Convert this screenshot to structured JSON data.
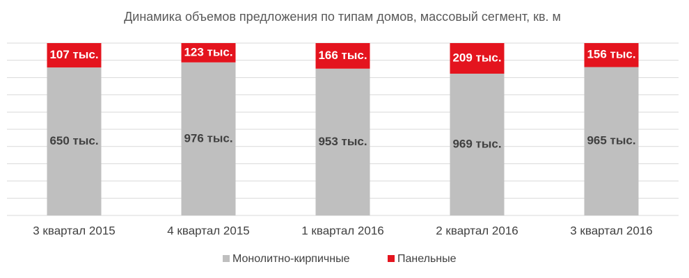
{
  "chart_data": {
    "type": "bar",
    "stacked": "percent",
    "title": "Динамика объемов предложения по типам домов, массовый сегмент, кв. м",
    "categories": [
      "3 квартал 2015",
      "4 квартал 2015",
      "1 квартал 2016",
      "2 квартал 2016",
      "3 квартал 2016"
    ],
    "series": [
      {
        "name": "Монолитно-кирпичные",
        "color": "#bfbfbf",
        "label_color": "#404040",
        "values": [
          650,
          976,
          953,
          969,
          965
        ],
        "value_labels": [
          "650 тыс.",
          "976 тыс.",
          "953 тыс.",
          "969 тыс.",
          "965 тыс."
        ]
      },
      {
        "name": "Панельные",
        "color": "#e4141e",
        "label_color": "#ffffff",
        "values": [
          107,
          123,
          166,
          209,
          156
        ],
        "value_labels": [
          "107 тыс.",
          "123 тыс.",
          "166 тыс.",
          "209 тыс.",
          "156 тыс."
        ]
      }
    ],
    "ylim": [
      0,
      100
    ],
    "yticks": [
      0,
      10,
      20,
      30,
      40,
      50,
      60,
      70,
      80,
      90,
      100
    ],
    "grid": true,
    "legend": "bottom"
  }
}
